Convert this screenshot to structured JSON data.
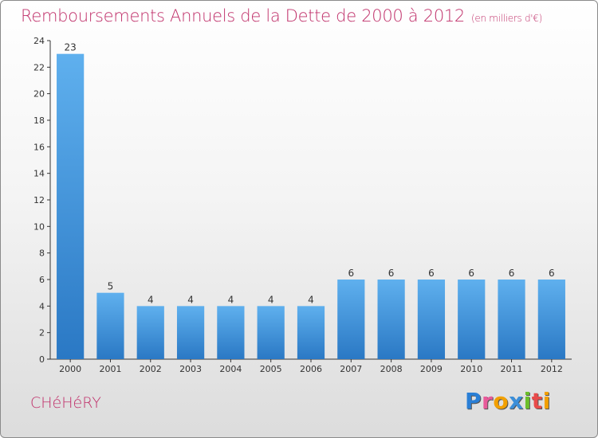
{
  "chart_data": {
    "type": "bar",
    "title": "Remboursements Annuels de la Dette de 2000 à 2012",
    "subtitle": "(en milliers d'€)",
    "categories": [
      "2000",
      "2001",
      "2002",
      "2003",
      "2004",
      "2005",
      "2006",
      "2007",
      "2008",
      "2009",
      "2010",
      "2011",
      "2012"
    ],
    "values": [
      23,
      5,
      4,
      4,
      4,
      4,
      4,
      6,
      6,
      6,
      6,
      6,
      6
    ],
    "ylim": [
      0,
      24
    ],
    "yticks": [
      0,
      2,
      4,
      6,
      8,
      10,
      12,
      14,
      16,
      18,
      20,
      22,
      24
    ],
    "xlabel": "",
    "ylabel": "",
    "grid": false,
    "bar_color": "#3c8fd9"
  },
  "footer": {
    "town": "CHéHéRY",
    "logo_letters": [
      "P",
      "r",
      "o",
      "x",
      "i",
      "t",
      "i"
    ],
    "logo_colors": [
      "#2a7fd6",
      "#e85a9a",
      "#f2a000",
      "#3c8fd9",
      "#6cbf2a",
      "#e84a4a",
      "#f2a000"
    ]
  }
}
